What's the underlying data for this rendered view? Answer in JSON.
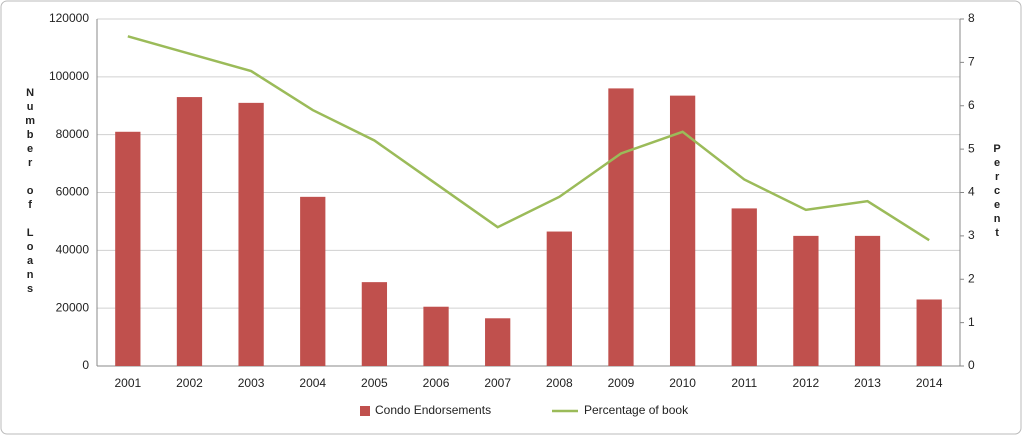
{
  "chart_data": {
    "type": "bar-line",
    "y_label": "Number of Loans",
    "y2_label": "Percent",
    "categories": [
      "2001",
      "2002",
      "2003",
      "2004",
      "2005",
      "2006",
      "2007",
      "2008",
      "2009",
      "2010",
      "2011",
      "2012",
      "2013",
      "2014"
    ],
    "series": [
      {
        "name": "Condo Endorsements",
        "type": "bar",
        "color": "#c0504d",
        "axis": "y",
        "values": [
          81000,
          93000,
          91000,
          58500,
          29000,
          20500,
          16500,
          46500,
          96000,
          93500,
          54500,
          45000,
          45000,
          23000
        ]
      },
      {
        "name": "Percentage of book",
        "type": "line",
        "color": "#9bbb59",
        "axis": "y2",
        "values": [
          7.6,
          7.2,
          6.8,
          5.9,
          5.2,
          4.2,
          3.2,
          3.9,
          4.9,
          5.4,
          4.3,
          3.6,
          3.8,
          2.9
        ]
      }
    ],
    "ylim": [
      0,
      120000
    ],
    "yticks": [
      0,
      20000,
      40000,
      60000,
      80000,
      100000,
      120000
    ],
    "y2lim": [
      0,
      8
    ],
    "y2ticks": [
      0,
      1,
      2,
      3,
      4,
      5,
      6,
      7,
      8
    ],
    "grid": true,
    "legend": "bottom"
  }
}
